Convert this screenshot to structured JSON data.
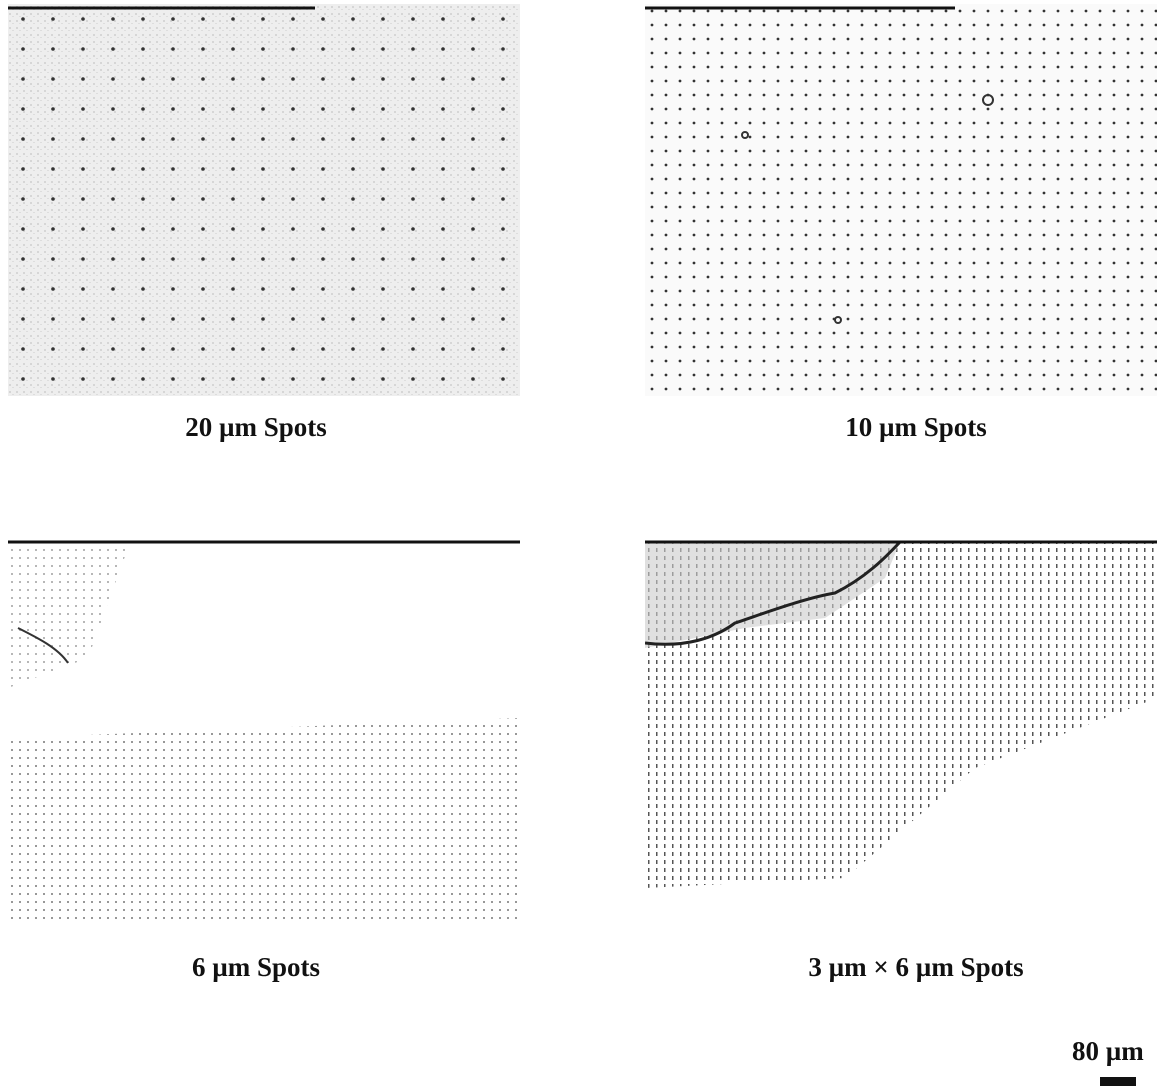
{
  "panels": [
    {
      "caption": "20 µm Spots"
    },
    {
      "caption": "10 µm Spots"
    },
    {
      "caption": "6 µm Spots"
    },
    {
      "caption": "3 µm × 6 µm Spots"
    }
  ],
  "scale_bar": {
    "label": "80 µm"
  }
}
